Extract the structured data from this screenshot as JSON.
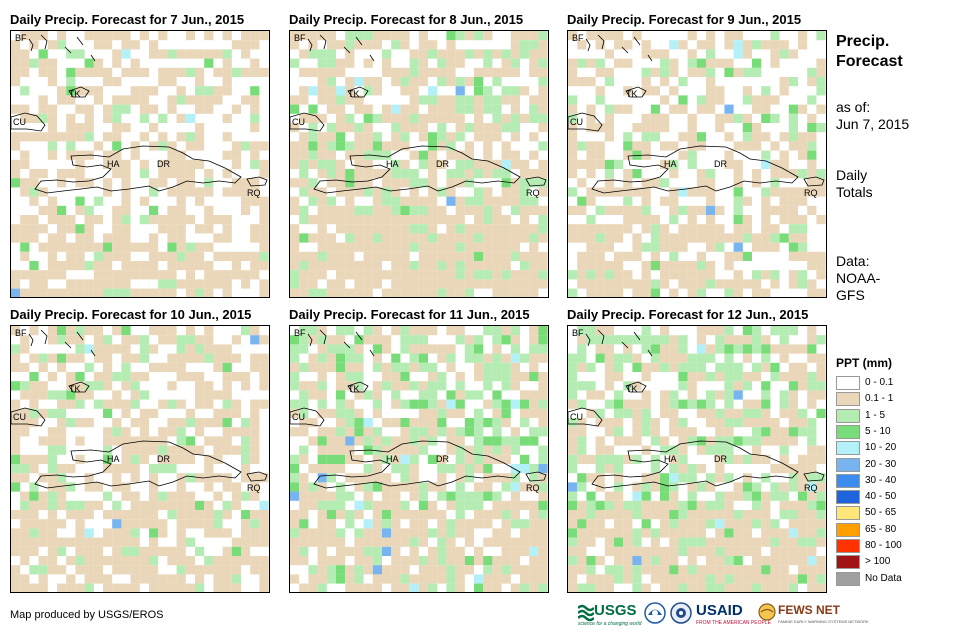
{
  "panels": [
    {
      "title": "Daily Precip. Forecast for 7 Jun., 2015",
      "seed": 7,
      "cover": 0.5,
      "wet": 0.12
    },
    {
      "title": "Daily Precip. Forecast for 8 Jun., 2015",
      "seed": 8,
      "cover": 0.75,
      "wet": 0.28
    },
    {
      "title": "Daily Precip. Forecast for 9 Jun., 2015",
      "seed": 9,
      "cover": 0.5,
      "wet": 0.26
    },
    {
      "title": "Daily Precip. Forecast for 10 Jun., 2015",
      "seed": 10,
      "cover": 0.62,
      "wet": 0.2
    },
    {
      "title": "Daily Precip. Forecast for 11 Jun., 2015",
      "seed": 11,
      "cover": 0.72,
      "wet": 0.42
    },
    {
      "title": "Daily Precip. Forecast for 12 Jun., 2015",
      "seed": 12,
      "cover": 0.74,
      "wet": 0.45
    }
  ],
  "places": {
    "bf": "BF",
    "tk": "TK",
    "cu": "CU",
    "ha": "HA",
    "dr": "DR",
    "rq": "RQ"
  },
  "side": {
    "title_line1": "Precip.",
    "title_line2": "Forecast",
    "asof_line1": "as of:",
    "asof_line2": "Jun 7, 2015",
    "daily_line1": "Daily",
    "daily_line2": "Totals",
    "data_line1": "Data:",
    "data_line2": "NOAA-",
    "data_line3": "GFS"
  },
  "legend": {
    "title": "PPT (mm)",
    "items": [
      {
        "label": "0 - 0.1",
        "color": "#ffffff"
      },
      {
        "label": "0.1 - 1",
        "color": "#ead6b8"
      },
      {
        "label": "1 - 5",
        "color": "#b4ecb4"
      },
      {
        "label": "5 - 10",
        "color": "#78dc78"
      },
      {
        "label": "10 - 20",
        "color": "#b4f0f8"
      },
      {
        "label": "20 - 30",
        "color": "#78b4f0"
      },
      {
        "label": "30 - 40",
        "color": "#3c8cf0"
      },
      {
        "label": "40 - 50",
        "color": "#1e64dc"
      },
      {
        "label": "50 - 65",
        "color": "#ffe678"
      },
      {
        "label": "65 - 80",
        "color": "#ffa000"
      },
      {
        "label": "80 - 100",
        "color": "#ff3200"
      },
      {
        "label": "> 100",
        "color": "#a01414"
      },
      {
        "label": "No Data",
        "color": "#a0a0a0"
      }
    ]
  },
  "credit": "Map produced by USGS/EROS",
  "logos": {
    "usgs": "USGS",
    "usgs_tag": "science for a changing world",
    "noaa": "NOAA",
    "usaid": "USAID",
    "usaid_tag": "FROM THE AMERICAN PEOPLE",
    "fews": "FEWS NET",
    "fews_tag": "FAMINE EARLY WARNING SYSTEMS NETWORK"
  }
}
